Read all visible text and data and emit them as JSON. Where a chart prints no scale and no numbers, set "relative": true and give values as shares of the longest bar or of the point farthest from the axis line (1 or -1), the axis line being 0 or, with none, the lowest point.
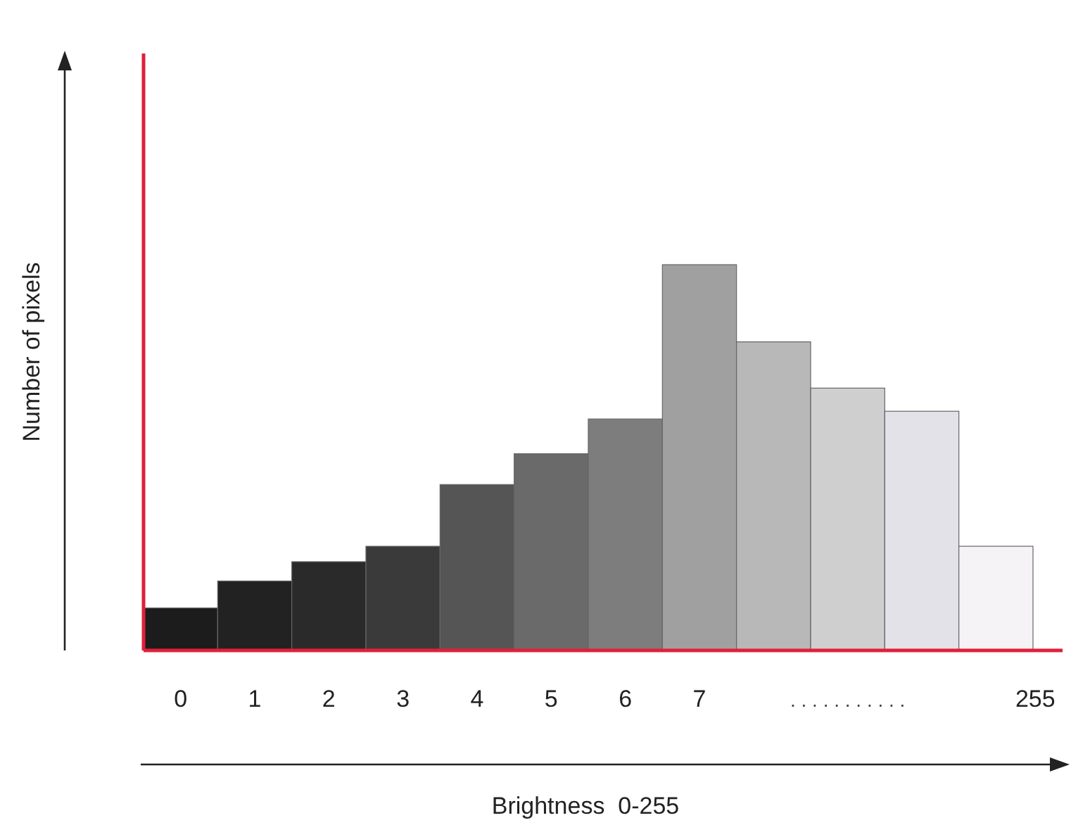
{
  "chart_data": {
    "type": "bar",
    "relative": true,
    "xlabel": "Brightness  0-255",
    "ylabel": "Number of pixels",
    "categories": [
      "0",
      "1",
      "2",
      "3",
      "4",
      "5",
      "6",
      "7",
      null,
      null,
      null,
      "255"
    ],
    "values": [
      0.11,
      0.18,
      0.23,
      0.27,
      0.43,
      0.51,
      0.6,
      1,
      0.8,
      0.68,
      0.62,
      0.27
    ],
    "colors": [
      "#1c1c1c",
      "#222222",
      "#2a2a2a",
      "#3a3a3a",
      "#555555",
      "#6a6a6a",
      "#7d7d7d",
      "#a0a0a0",
      "#b8b8b8",
      "#cfcfcf",
      "#e2e2e8",
      "#f6f3f6"
    ],
    "annotations": [
      ". . . . . . . . . . ."
    ]
  }
}
